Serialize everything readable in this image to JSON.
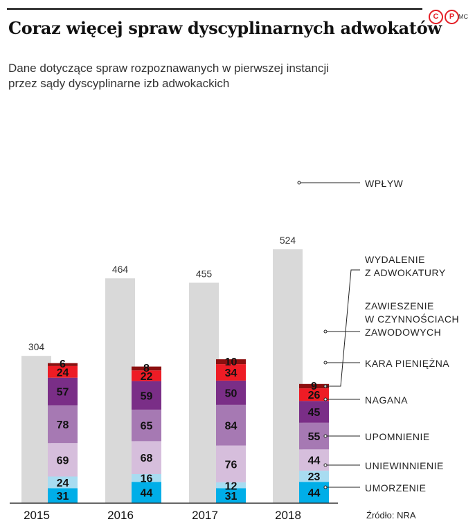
{
  "header": {
    "title": "Coraz więcej spraw dyscyplinarnych adwokatów",
    "subtitle_lines": [
      "Dane dotyczące spraw rozpoznawanych w pierwszej instancji",
      "przez sądy dyscyplinarne izb adwokackich"
    ],
    "logo_letters": [
      "C",
      "P"
    ],
    "credit": "MC",
    "source": "Źródło: NRA"
  },
  "colors": {
    "wplyw": "#d9d9d9",
    "wydalenie": "#8c0f0f",
    "zawieszenie": "#ee1c25",
    "kara": "#7a2e87",
    "nagana": "#a679b3",
    "upomnienie": "#d6bedc",
    "uniewinnienie": "#a8dcf1",
    "umorzenie": "#00aee8"
  },
  "chart_data": {
    "type": "bar",
    "categories": [
      "2015",
      "2016",
      "2017",
      "2018"
    ],
    "totals": {
      "name": "WPŁYW",
      "values": [
        304,
        464,
        455,
        524
      ]
    },
    "stacked_series": [
      {
        "name": "UMORZENIE",
        "color_key": "umorzenie",
        "values": [
          31,
          44,
          31,
          44
        ]
      },
      {
        "name": "UNIEWINNIENIE",
        "color_key": "uniewinnienie",
        "values": [
          24,
          16,
          12,
          23
        ]
      },
      {
        "name": "UPOMNIENIE",
        "color_key": "upomnienie",
        "values": [
          69,
          68,
          76,
          44
        ]
      },
      {
        "name": "NAGANA",
        "color_key": "nagana",
        "values": [
          78,
          65,
          84,
          55
        ]
      },
      {
        "name": "KARA PIENIĘŻNA",
        "color_key": "kara",
        "values": [
          57,
          59,
          50,
          45
        ]
      },
      {
        "name": "ZAWIESZENIE W CZYNNOŚCIACH ZAWODOWYCH",
        "color_key": "zawieszenie",
        "values": [
          24,
          22,
          34,
          26
        ],
        "label_lines": [
          "ZAWIESZENIE",
          "W CZYNNOŚCIACH",
          "ZAWODOWYCH"
        ]
      },
      {
        "name": "WYDALENIE Z ADWOKATURY",
        "color_key": "wydalenie",
        "values": [
          6,
          8,
          10,
          9
        ],
        "label_lines": [
          "WYDALENIE",
          "Z ADWOKATURY"
        ]
      }
    ],
    "legend_placement": "right",
    "grid": false
  }
}
